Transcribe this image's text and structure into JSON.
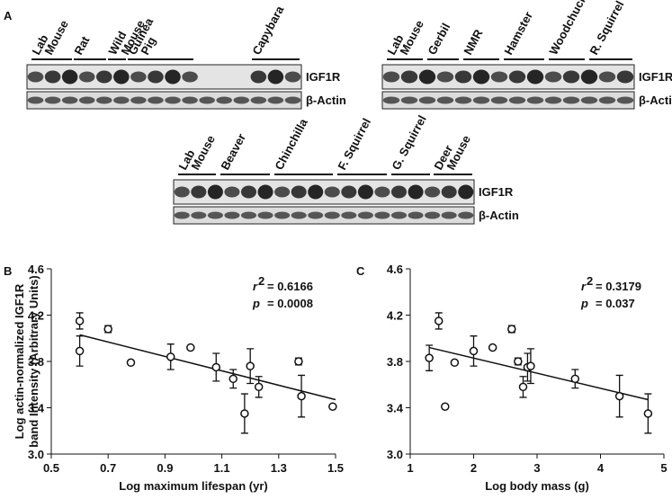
{
  "panel_labels": [
    "A",
    "B",
    "C"
  ],
  "blots": [
    {
      "groups": [
        {
          "lines": [
            "Lab",
            "Mouse"
          ]
        },
        {
          "lines": [
            "Rat"
          ]
        },
        {
          "lines": [
            "Wild",
            "Mouse"
          ]
        },
        {
          "lines": [
            "Guinea",
            "Pig"
          ]
        },
        {
          "lines": [
            "Capybara"
          ]
        }
      ],
      "rows": [
        "IGF1R",
        "β-Actin"
      ]
    },
    {
      "groups": [
        {
          "lines": [
            "Lab",
            "Mouse"
          ]
        },
        {
          "lines": [
            "Gerbil"
          ]
        },
        {
          "lines": [
            "NMR"
          ]
        },
        {
          "lines": [
            "Hamster"
          ]
        },
        {
          "lines": [
            "Woodchuck"
          ]
        },
        {
          "lines": [
            "R. Squirrel"
          ]
        }
      ],
      "rows": [
        "IGF1R",
        "β-Actin"
      ]
    },
    {
      "groups": [
        {
          "lines": [
            "Lab",
            "Mouse"
          ]
        },
        {
          "lines": [
            "Beaver"
          ]
        },
        {
          "lines": [
            "Chinchilla"
          ]
        },
        {
          "lines": [
            "F. Squirrel"
          ]
        },
        {
          "lines": [
            "G. Squirrel"
          ]
        },
        {
          "lines": [
            "Deer",
            "Mouse"
          ]
        }
      ],
      "rows": [
        "IGF1R",
        "β-Actin"
      ]
    }
  ],
  "chart_data": [
    {
      "type": "scatter",
      "xlabel": "Log maximum lifespan (yr)",
      "ylabel": [
        "Log actin-normalized IGF1R",
        "band Intensity (Arbitrary Units)"
      ],
      "x": [
        0.6,
        0.6,
        0.7,
        0.78,
        0.92,
        0.99,
        1.08,
        1.14,
        1.18,
        1.2,
        1.23,
        1.37,
        1.38,
        1.49
      ],
      "values": [
        4.15,
        3.89,
        4.08,
        3.79,
        3.84,
        3.92,
        3.75,
        3.65,
        3.35,
        3.76,
        3.58,
        3.8,
        3.5,
        3.41
      ],
      "errors": [
        0.07,
        0.13,
        0.03,
        0,
        0.11,
        0,
        0.12,
        0.08,
        0.17,
        0.15,
        0.09,
        0.03,
        0.18,
        0
      ],
      "trendline": {
        "x": [
          0.6,
          1.5
        ],
        "values": [
          4.03,
          3.47
        ]
      },
      "annotations": [
        {
          "symbol": "r",
          "sup": "2",
          "text": "= 0.6166"
        },
        {
          "symbol": "p",
          "text": "= 0.0008"
        }
      ],
      "xlim": [
        0.5,
        1.5
      ],
      "xticks": [
        0.5,
        0.7,
        0.9,
        1.1,
        1.3,
        1.5
      ],
      "ylim": [
        3,
        4.6
      ],
      "yticks": [
        {
          "value": 3,
          "label": "3.0"
        },
        3.4,
        3.8,
        4.2,
        4.6
      ]
    },
    {
      "type": "scatter",
      "xlabel": "Log body mass (g)",
      "x": [
        1.3,
        1.45,
        1.55,
        1.7,
        2.0,
        2.3,
        2.6,
        2.7,
        2.78,
        2.85,
        2.9,
        3.6,
        4.3,
        4.75
      ],
      "values": [
        3.83,
        4.15,
        3.41,
        3.79,
        3.89,
        3.92,
        4.08,
        3.8,
        3.58,
        3.75,
        3.76,
        3.65,
        3.5,
        3.35
      ],
      "errors": [
        0.11,
        0.07,
        0,
        0,
        0.13,
        0,
        0.03,
        0.03,
        0.09,
        0.12,
        0.15,
        0.08,
        0.18,
        0.17
      ],
      "trendline": {
        "x": [
          1.3,
          4.75
        ],
        "values": [
          3.92,
          3.47
        ]
      },
      "annotations": [
        {
          "symbol": "r",
          "sup": "2",
          "text": "= 0.3179"
        },
        {
          "symbol": "p",
          "text": "= 0.037"
        }
      ],
      "xlim": [
        1,
        5
      ],
      "xticks": [
        1,
        2,
        3,
        4,
        5
      ],
      "ylim": [
        3,
        4.6
      ],
      "yticks": [
        {
          "value": 3,
          "label": "3.0"
        },
        3.4,
        3.8,
        4.2,
        4.6
      ]
    }
  ]
}
